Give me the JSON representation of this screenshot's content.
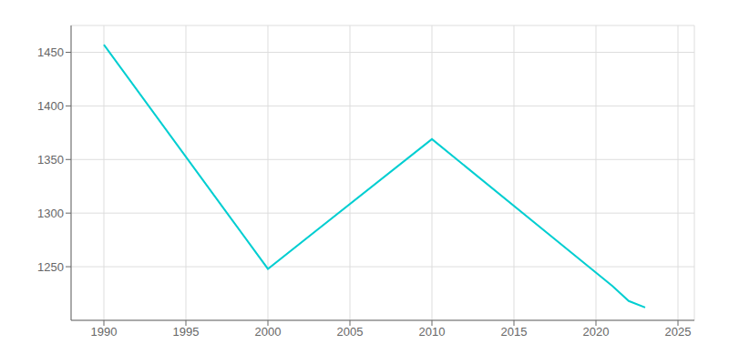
{
  "chart_data": {
    "type": "line",
    "x": [
      1990,
      2000,
      2010,
      2021,
      2022,
      2023
    ],
    "values": [
      1457,
      1248,
      1369,
      1232,
      1218,
      1212
    ],
    "color": "#00CED1",
    "xlim": [
      1988,
      2026
    ],
    "ylim": [
      1200,
      1475
    ],
    "xticks": [
      1990,
      1995,
      2000,
      2005,
      2010,
      2015,
      2020,
      2025
    ],
    "yticks": [
      1250,
      1300,
      1350,
      1400,
      1450
    ],
    "grid": true
  }
}
